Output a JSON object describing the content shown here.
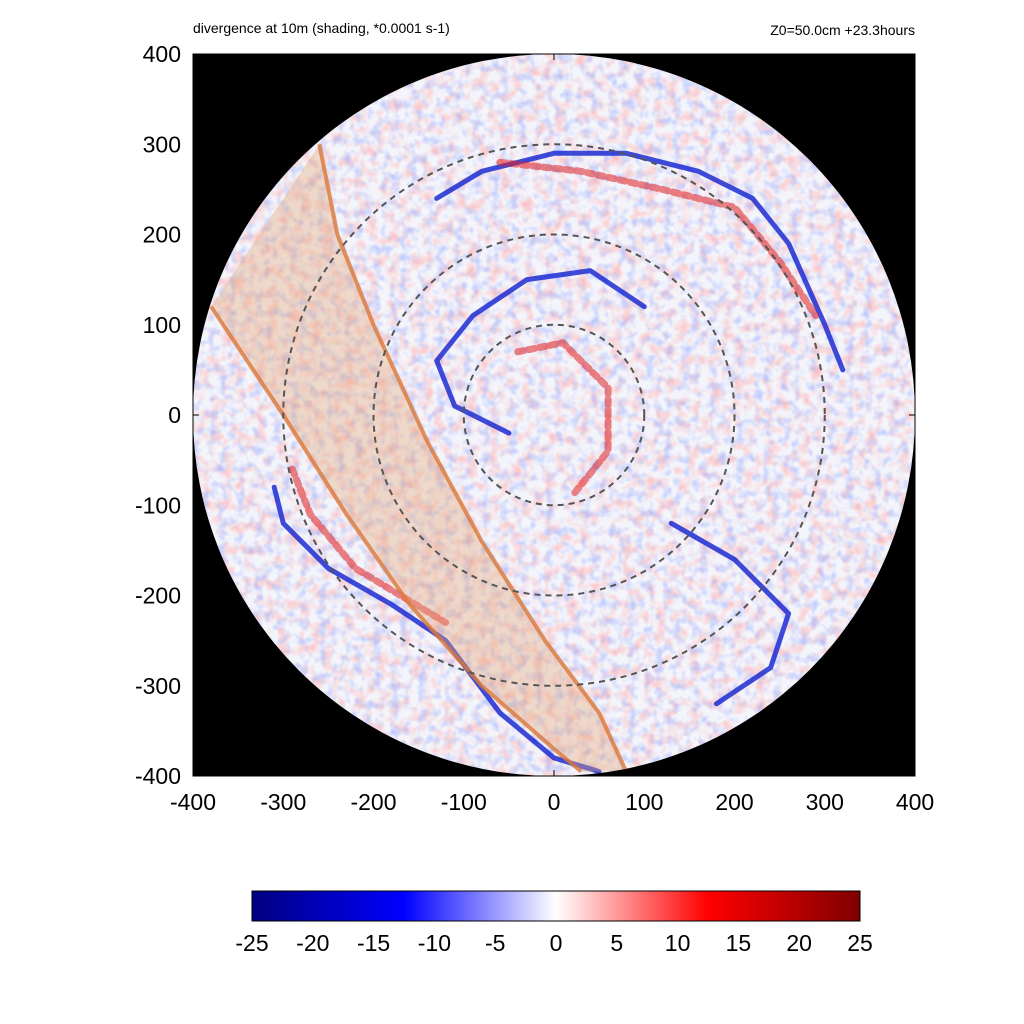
{
  "header": {
    "title": "divergence at 10m (shading, *0.0001 s-1)",
    "info": "Z0=50.0cm  +23.3hours"
  },
  "chart_data": {
    "type": "heatmap",
    "title": "divergence at 10m (shading, *0.0001 s-1)",
    "subtitle": "Z0=50.0cm  +23.3hours",
    "xlabel": "",
    "ylabel": "",
    "xlim": [
      -400,
      400
    ],
    "ylim": [
      -400,
      400
    ],
    "x_ticks": [
      "-400",
      "-300",
      "-200",
      "-100",
      "0",
      "100",
      "200",
      "300",
      "400"
    ],
    "y_ticks": [
      "400",
      "300",
      "200",
      "100",
      "0",
      "-100",
      "-200",
      "-300",
      "-400"
    ],
    "domain_radius": 400,
    "background_outside_domain": "#000000",
    "range_rings_radius": [
      100,
      200,
      300
    ],
    "colorbar": {
      "min": -25,
      "max": 25,
      "ticks": [
        "-25",
        "-20",
        "-15",
        "-10",
        "-5",
        "0",
        "5",
        "10",
        "15",
        "20",
        "25"
      ],
      "colors": [
        "#000080",
        "#0000ff",
        "#ffffff",
        "#ff0000",
        "#800000"
      ]
    },
    "features": {
      "convergence_bands": [
        {
          "name": "outer",
          "points": [
            [
              -310,
              -80
            ],
            [
              -300,
              -120
            ],
            [
              -250,
              -170
            ],
            [
              -180,
              -210
            ],
            [
              -120,
              -250
            ],
            [
              -60,
              -330
            ],
            [
              0,
              -380
            ],
            [
              50,
              -395
            ]
          ]
        },
        {
          "name": "ring",
          "points": [
            [
              -130,
              240
            ],
            [
              -80,
              270
            ],
            [
              0,
              290
            ],
            [
              80,
              290
            ],
            [
              160,
              270
            ],
            [
              220,
              240
            ],
            [
              260,
              190
            ],
            [
              300,
              100
            ],
            [
              320,
              50
            ]
          ]
        },
        {
          "name": "inner",
          "points": [
            [
              -50,
              -20
            ],
            [
              -110,
              10
            ],
            [
              -130,
              60
            ],
            [
              -90,
              110
            ],
            [
              -30,
              150
            ],
            [
              40,
              160
            ],
            [
              100,
              120
            ]
          ]
        },
        {
          "name": "east",
          "points": [
            [
              130,
              -120
            ],
            [
              200,
              -160
            ],
            [
              260,
              -220
            ],
            [
              240,
              -280
            ],
            [
              180,
              -320
            ]
          ]
        }
      ],
      "divergence_bands": [
        {
          "name": "outer-red",
          "points": [
            [
              -290,
              -60
            ],
            [
              -270,
              -110
            ],
            [
              -220,
              -170
            ],
            [
              -170,
              -200
            ],
            [
              -120,
              -230
            ]
          ]
        },
        {
          "name": "ring-red",
          "points": [
            [
              -60,
              280
            ],
            [
              30,
              270
            ],
            [
              120,
              250
            ],
            [
              200,
              230
            ],
            [
              250,
              170
            ],
            [
              290,
              110
            ]
          ]
        },
        {
          "name": "core-red",
          "points": [
            [
              -40,
              70
            ],
            [
              10,
              80
            ],
            [
              60,
              30
            ],
            [
              60,
              -40
            ],
            [
              20,
              -90
            ]
          ]
        }
      ],
      "shaded_swath": {
        "color": "#e6a878",
        "left_edge": [
          [
            -380,
            120
          ],
          [
            -300,
            0
          ],
          [
            -230,
            -110
          ],
          [
            -160,
            -210
          ],
          [
            -80,
            -300
          ],
          [
            0,
            -370
          ],
          [
            30,
            -395
          ]
        ],
        "right_edge": [
          [
            -260,
            300
          ],
          [
            -240,
            200
          ],
          [
            -200,
            100
          ],
          [
            -140,
            -30
          ],
          [
            -80,
            -140
          ],
          [
            -10,
            -250
          ],
          [
            50,
            -330
          ],
          [
            80,
            -395
          ]
        ]
      }
    }
  }
}
